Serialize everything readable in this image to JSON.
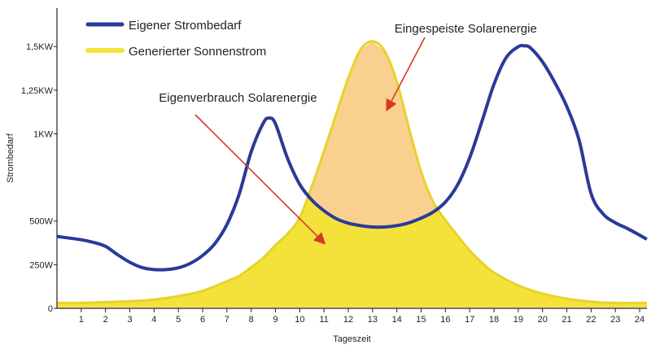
{
  "chart_data": {
    "type": "area",
    "xlabel": "Tageszeit",
    "ylabel": "Strombedarf",
    "x_ticks": [
      1,
      2,
      3,
      4,
      5,
      6,
      7,
      8,
      9,
      10,
      11,
      12,
      13,
      14,
      15,
      16,
      17,
      18,
      19,
      20,
      21,
      22,
      23,
      24
    ],
    "xlim": [
      0,
      24.3
    ],
    "ylim": [
      0,
      1720
    ],
    "y_ticks": [
      {
        "value": 0,
        "label": "0"
      },
      {
        "value": 250,
        "label": "250W"
      },
      {
        "value": 500,
        "label": "500W"
      },
      {
        "value": 1000,
        "label": "1KW"
      },
      {
        "value": 1250,
        "label": "1,25KW"
      },
      {
        "value": 1500,
        "label": "1,5KW"
      }
    ],
    "grid": false,
    "legend_position": "top-left",
    "series": [
      {
        "name": "Eigener Strombedarf",
        "color": "#2a3a9a",
        "x": [
          0,
          1,
          1.5,
          2,
          2.5,
          3,
          3.5,
          4,
          4.5,
          5,
          5.5,
          6,
          6.5,
          7,
          7.5,
          8,
          8.5,
          8.75,
          9,
          9.5,
          10,
          10.5,
          11,
          11.5,
          12,
          12.5,
          13,
          13.5,
          14,
          14.5,
          15,
          15.5,
          16,
          16.5,
          17,
          17.5,
          18,
          18.5,
          19,
          19.25,
          19.5,
          20,
          20.5,
          21,
          21.5,
          22,
          22.5,
          23,
          23.5,
          24.3
        ],
        "y": [
          412,
          393,
          378,
          355,
          307,
          264,
          234,
          222,
          222,
          232,
          258,
          303,
          370,
          480,
          652,
          897,
          1062,
          1090,
          1057,
          858,
          710,
          620,
          559,
          514,
          488,
          474,
          466,
          466,
          474,
          490,
          517,
          552,
          609,
          707,
          863,
          1069,
          1284,
          1436,
          1499,
          1504,
          1493,
          1412,
          1295,
          1156,
          967,
          657,
          540,
          490,
          457,
          396
        ]
      },
      {
        "name": "Generierter Sonnenstrom",
        "color": "#f4e23a",
        "stroke": "#e8d22a",
        "x": [
          0,
          1,
          2,
          3,
          4,
          5,
          6,
          7,
          7.5,
          8,
          8.5,
          9,
          9.5,
          10,
          10.5,
          11,
          11.5,
          12,
          12.5,
          13,
          13.5,
          14,
          14.5,
          15,
          15.5,
          16,
          16.5,
          17,
          17.5,
          18,
          19,
          20,
          21,
          22,
          23,
          24.3
        ],
        "y": [
          31,
          31,
          36,
          40,
          50,
          70,
          100,
          155,
          185,
          235,
          290,
          362,
          428,
          520,
          700,
          900,
          1112,
          1320,
          1481,
          1530,
          1473,
          1298,
          1032,
          782,
          609,
          505,
          417,
          331,
          262,
          205,
          131,
          84,
          55,
          38,
          31,
          31
        ]
      }
    ],
    "fills": [
      {
        "name": "Eigenverbrauch Solarenergie",
        "color": "#f4e23a",
        "region": "min(Eigener Strombedarf, Generierter Sonnenstrom)"
      },
      {
        "name": "Eingespeiste Solarenergie",
        "color": "#f9d08e",
        "region": "Generierter Sonnenstrom above Eigener Strombedarf"
      }
    ],
    "annotations": [
      {
        "text": "Eingespeiste Solarenergie",
        "arrow_color": "#d63a25",
        "text_x": 13.9,
        "text_y": 1580,
        "points_to": [
          13.6,
          1140
        ]
      },
      {
        "text": "Eigenverbrauch Solarenergie",
        "arrow_color": "#d63a25",
        "text_x": 4.2,
        "text_y": 1185,
        "points_to": [
          11.0,
          375
        ]
      }
    ]
  }
}
